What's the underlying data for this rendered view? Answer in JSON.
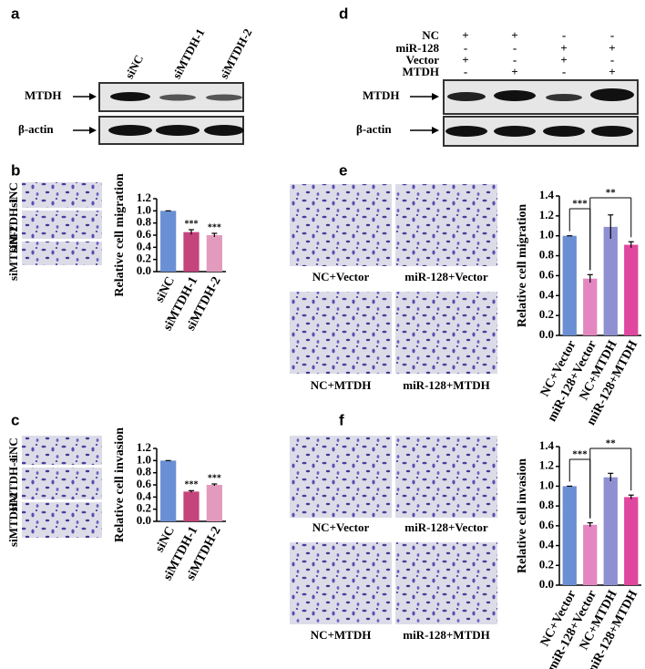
{
  "panel_labels": [
    "a",
    "b",
    "c",
    "d",
    "e",
    "f"
  ],
  "blot_a": {
    "lanes": [
      "siNC",
      "siMTDH-1",
      "siMTDH-2"
    ],
    "rows": [
      "MTDH",
      "β-actin"
    ]
  },
  "blot_d": {
    "conditions": [
      {
        "name": "NC",
        "signs": [
          "+",
          "+",
          "-",
          "-"
        ]
      },
      {
        "name": "miR-128",
        "signs": [
          "-",
          "-",
          "+",
          "+"
        ]
      },
      {
        "name": "Vector",
        "signs": [
          "+",
          "-",
          "+",
          "-"
        ]
      },
      {
        "name": "MTDH",
        "signs": [
          "-",
          "+",
          "-",
          "+"
        ]
      }
    ],
    "rows": [
      "MTDH",
      "β-actin"
    ]
  },
  "images_b": {
    "labels": [
      "siNC",
      "siMTDH-1",
      "siMTDH-2"
    ]
  },
  "images_c": {
    "labels": [
      "siNC",
      "siMTDH-1",
      "siMTDH-2"
    ]
  },
  "images_e": {
    "labels": [
      "NC+Vector",
      "miR-128+Vector",
      "NC+MTDH",
      "miR-128+MTDH"
    ]
  },
  "images_f": {
    "labels": [
      "NC+Vector",
      "miR-128+Vector",
      "NC+MTDH",
      "miR-128+MTDH"
    ]
  },
  "chart_data": [
    {
      "type": "bar",
      "y_label": "Relative cell migration",
      "categories": [
        "siNC",
        "siMTDH-1",
        "siMTDH-2"
      ],
      "values": [
        1.0,
        0.65,
        0.6
      ],
      "errors": [
        0,
        0.04,
        0.03
      ],
      "colors": [
        "#6b8fd4",
        "#c5447c",
        "#e39bbd"
      ],
      "significance": [
        null,
        "***",
        "***"
      ],
      "ylim": [
        0,
        1.2
      ],
      "yticks": [
        {
          "value": 0,
          "label": "0.0"
        },
        0.2,
        0.4,
        0.6,
        0.8,
        {
          "value": 1,
          "label": "1.0"
        },
        1.2
      ]
    },
    {
      "type": "bar",
      "y_label": "Relative cell invasion",
      "categories": [
        "siNC",
        "siMTDH-1",
        "siMTDH-2"
      ],
      "values": [
        1.0,
        0.49,
        0.6
      ],
      "errors": [
        0,
        0.015,
        0.015
      ],
      "colors": [
        "#6b8fd4",
        "#c5447c",
        "#e39bbd"
      ],
      "significance": [
        null,
        "***",
        "***"
      ],
      "ylim": [
        0,
        1.2
      ],
      "yticks": [
        {
          "value": 0,
          "label": "0.0"
        },
        0.2,
        0.4,
        0.6,
        0.8,
        {
          "value": 1,
          "label": "1.0"
        },
        1.2
      ]
    },
    {
      "type": "bar",
      "y_label": "Relative cell migration",
      "categories": [
        "NC+Vector",
        "miR-128+Vector",
        "NC+MTDH",
        "miR-128+MTDH"
      ],
      "values": [
        1.0,
        0.57,
        1.09,
        0.91
      ],
      "errors": [
        0,
        0.04,
        0.12,
        0.03
      ],
      "colors": [
        "#6b8fd4",
        "#e487c0",
        "#8e90d2",
        "#e0479f"
      ],
      "brackets": [
        {
          "from": "NC+Vector",
          "to": "miR-128+Vector",
          "label": "***"
        },
        {
          "from": "miR-128+Vector",
          "to": "miR-128+MTDH",
          "label": "**"
        }
      ],
      "ylim": [
        0,
        1.4
      ],
      "yticks": [
        {
          "value": 0,
          "label": "0.0"
        },
        0.2,
        0.4,
        0.6,
        0.8,
        {
          "value": 1,
          "label": "1.0"
        },
        1.2,
        1.4
      ]
    },
    {
      "type": "bar",
      "y_label": "Relative cell invasion",
      "categories": [
        "NC+Vector",
        "miR-128+Vector",
        "NC+MTDH",
        "miR-128+MTDH"
      ],
      "values": [
        1.0,
        0.61,
        1.09,
        0.89
      ],
      "errors": [
        0,
        0.02,
        0.04,
        0.02
      ],
      "colors": [
        "#6b8fd4",
        "#e487c0",
        "#8e90d2",
        "#e0479f"
      ],
      "brackets": [
        {
          "from": "NC+Vector",
          "to": "miR-128+Vector",
          "label": "***"
        },
        {
          "from": "miR-128+Vector",
          "to": "miR-128+MTDH",
          "label": "**"
        }
      ],
      "ylim": [
        0,
        1.4
      ],
      "yticks": [
        {
          "value": 0,
          "label": "0.0"
        },
        0.2,
        0.4,
        0.6,
        0.8,
        {
          "value": 1,
          "label": "1.0"
        },
        1.2,
        1.4
      ]
    }
  ]
}
